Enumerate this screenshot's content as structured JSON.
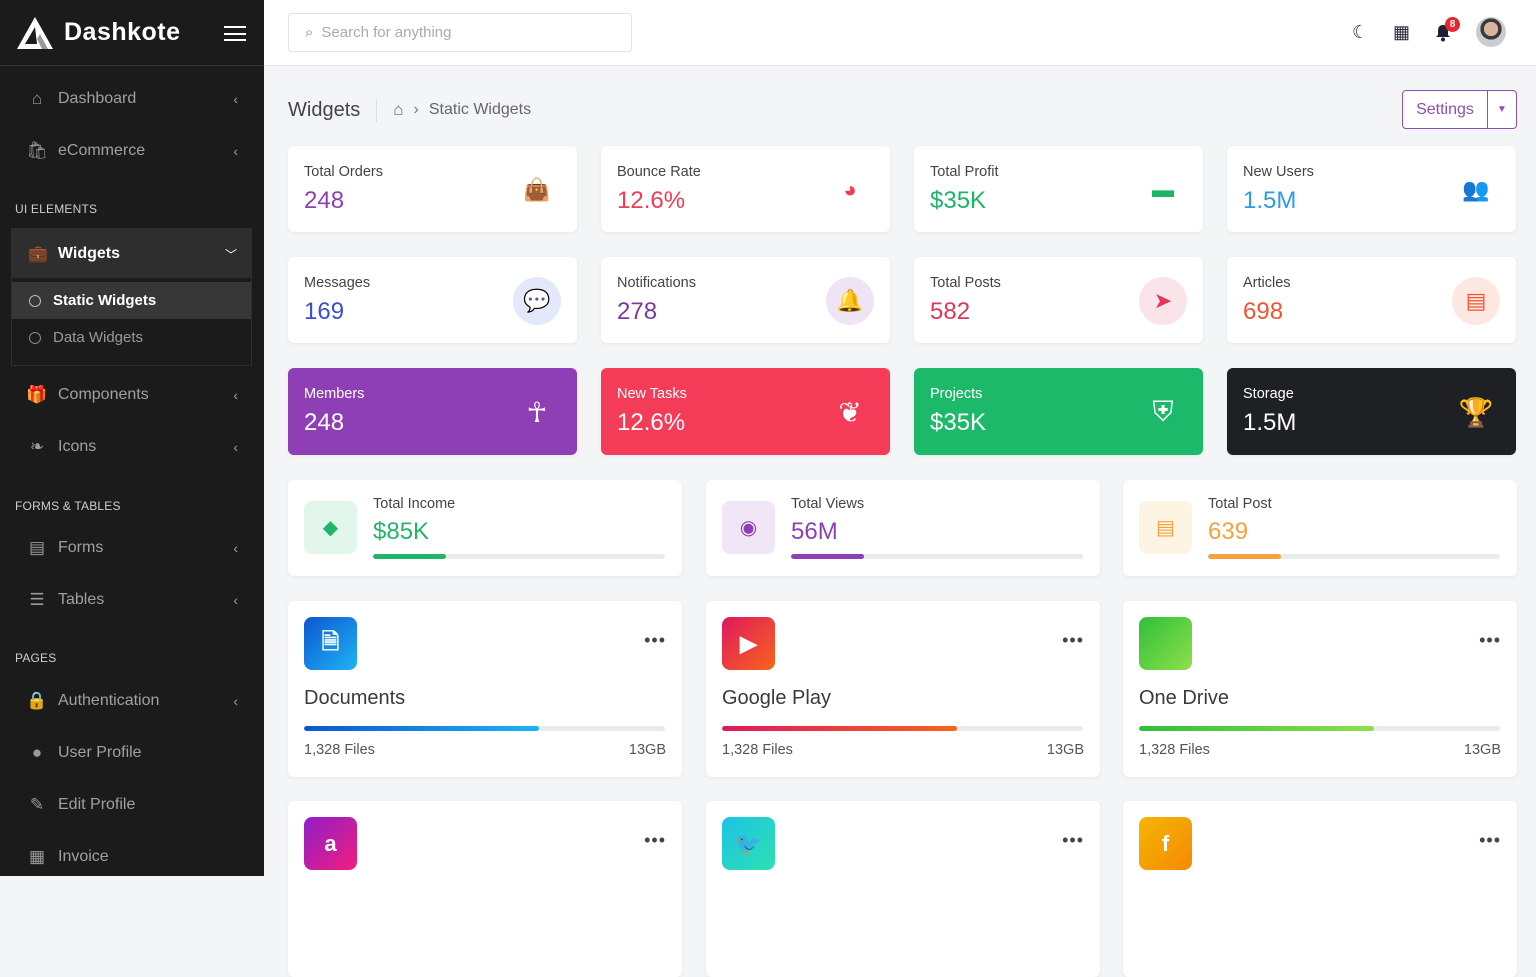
{
  "brand": {
    "name": "Dashkote"
  },
  "sidebar": {
    "items_top": [
      {
        "label": "Dashboard",
        "icon": "home-icon",
        "glyph": "⌂"
      },
      {
        "label": "eCommerce",
        "icon": "shopping-bag-icon",
        "glyph": "🛍"
      }
    ],
    "section_ui": "UI ELEMENTS",
    "widgets": {
      "label": "Widgets",
      "subitems": [
        {
          "label": "Static Widgets",
          "active": true
        },
        {
          "label": "Data Widgets"
        }
      ]
    },
    "items_ui": [
      {
        "label": "Components",
        "icon": "gift-icon",
        "glyph": "🎁"
      },
      {
        "label": "Icons",
        "icon": "leaf-icon",
        "glyph": "❧"
      }
    ],
    "section_forms": "FORMS & TABLES",
    "items_forms": [
      {
        "label": "Forms",
        "icon": "form-icon",
        "glyph": "▤"
      },
      {
        "label": "Tables",
        "icon": "database-icon",
        "glyph": "☰"
      }
    ],
    "section_pages": "PAGES",
    "items_pages": [
      {
        "label": "Authentication",
        "icon": "lock-icon",
        "glyph": "🔒",
        "chevron": true
      },
      {
        "label": "User Profile",
        "icon": "user-circle-icon",
        "glyph": "●"
      },
      {
        "label": "Edit Profile",
        "icon": "edit-icon",
        "glyph": "✎"
      },
      {
        "label": "Invoice",
        "icon": "invoice-icon",
        "glyph": "▦"
      }
    ]
  },
  "topbar": {
    "search_placeholder": "Search for anything",
    "notifications_count": "8"
  },
  "page": {
    "title": "Widgets",
    "breadcrumb": "Static Widgets",
    "settings_label": "Settings"
  },
  "stats": [
    {
      "label": "Total Orders",
      "value": "248",
      "color": "#8e3fb5",
      "bg": "transparent",
      "icon": "shopping-bag-icon",
      "glyph": "👜"
    },
    {
      "label": "Bounce Rate",
      "value": "12.6%",
      "color": "#f23a55",
      "bg": "transparent",
      "icon": "pie-chart-icon",
      "glyph": "◕"
    },
    {
      "label": "Total Profit",
      "value": "$35K",
      "color": "#1db46a",
      "bg": "transparent",
      "icon": "wallet-icon",
      "glyph": "▬"
    },
    {
      "label": "New Users",
      "value": "1.5M",
      "color": "#2f9ae8",
      "bg": "transparent",
      "icon": "users-icon",
      "glyph": "👥"
    },
    {
      "label": "Messages",
      "value": "169",
      "color": "#3b4fd6",
      "bg": "#e4e8fb",
      "icon": "chat-icon",
      "glyph": "💬"
    },
    {
      "label": "Notifications",
      "value": "278",
      "color": "#7b3a9e",
      "bg": "#efe4f5",
      "icon": "bell-icon",
      "glyph": "🔔"
    },
    {
      "label": "Total Posts",
      "value": "582",
      "color": "#e0365a",
      "bg": "#fbe3ea",
      "icon": "send-icon",
      "glyph": "➤"
    },
    {
      "label": "Articles",
      "value": "698",
      "color": "#f0552e",
      "bg": "#fde8e1",
      "icon": "newspaper-icon",
      "glyph": "▤"
    }
  ],
  "solid_stats": [
    {
      "label": "Members",
      "value": "248",
      "bg": "#8e3fb5",
      "icon": "accessibility-icon",
      "glyph": "☥"
    },
    {
      "label": "New Tasks",
      "value": "12.6%",
      "bg": "#f43b57",
      "icon": "leaf-icon",
      "glyph": "❦"
    },
    {
      "label": "Projects",
      "value": "$35K",
      "bg": "#1db96a",
      "icon": "shield-check-icon",
      "glyph": "⛨"
    },
    {
      "label": "Storage",
      "value": "1.5M",
      "bg": "#1f2024",
      "icon": "trophy-icon",
      "glyph": "🏆"
    }
  ],
  "progress_stats": [
    {
      "label": "Total Income",
      "value": "$85K",
      "color": "#22b56a",
      "bg": "#e3f6ec",
      "progress": 25,
      "icon": "diamond-icon",
      "glyph": "◆"
    },
    {
      "label": "Total Views",
      "value": "56M",
      "color": "#8e3fb5",
      "bg": "#f1e6f7",
      "progress": 25,
      "icon": "eye-icon",
      "glyph": "◉"
    },
    {
      "label": "Total Post",
      "value": "639",
      "color": "#f5a23c",
      "bg": "#fef4e4",
      "progress": 25,
      "icon": "newspaper-icon",
      "glyph": "▤"
    }
  ],
  "apps": [
    {
      "name": "Documents",
      "files": "1,328 Files",
      "size": "13GB",
      "progress": 65,
      "gradient": "linear-gradient(135deg,#0b57d0,#1fb3f5)",
      "icon": "document-icon",
      "glyph": "🗎"
    },
    {
      "name": "Google Play",
      "files": "1,328 Files",
      "size": "13GB",
      "progress": 65,
      "gradient": "linear-gradient(135deg,#e0185f,#f7641b)",
      "icon": "play-icon",
      "glyph": "▶"
    },
    {
      "name": "One Drive",
      "files": "1,328 Files",
      "size": "13GB",
      "progress": 65,
      "gradient": "linear-gradient(135deg,#2fbf3a,#8ee04a)",
      "icon": "apple-icon",
      "glyph": ""
    },
    {
      "name": "",
      "files": "",
      "size": "",
      "gradient": "linear-gradient(135deg,#8e1fc8,#f21d7e)",
      "icon": "amazon-icon",
      "glyph": "a"
    },
    {
      "name": "",
      "files": "",
      "size": "",
      "gradient": "linear-gradient(135deg,#1bc4e6,#2fe0b0)",
      "icon": "twitter-icon",
      "glyph": "🐦"
    },
    {
      "name": "",
      "files": "",
      "size": "",
      "gradient": "linear-gradient(135deg,#f7b500,#f58a07)",
      "icon": "facebook-icon",
      "glyph": "f"
    }
  ]
}
